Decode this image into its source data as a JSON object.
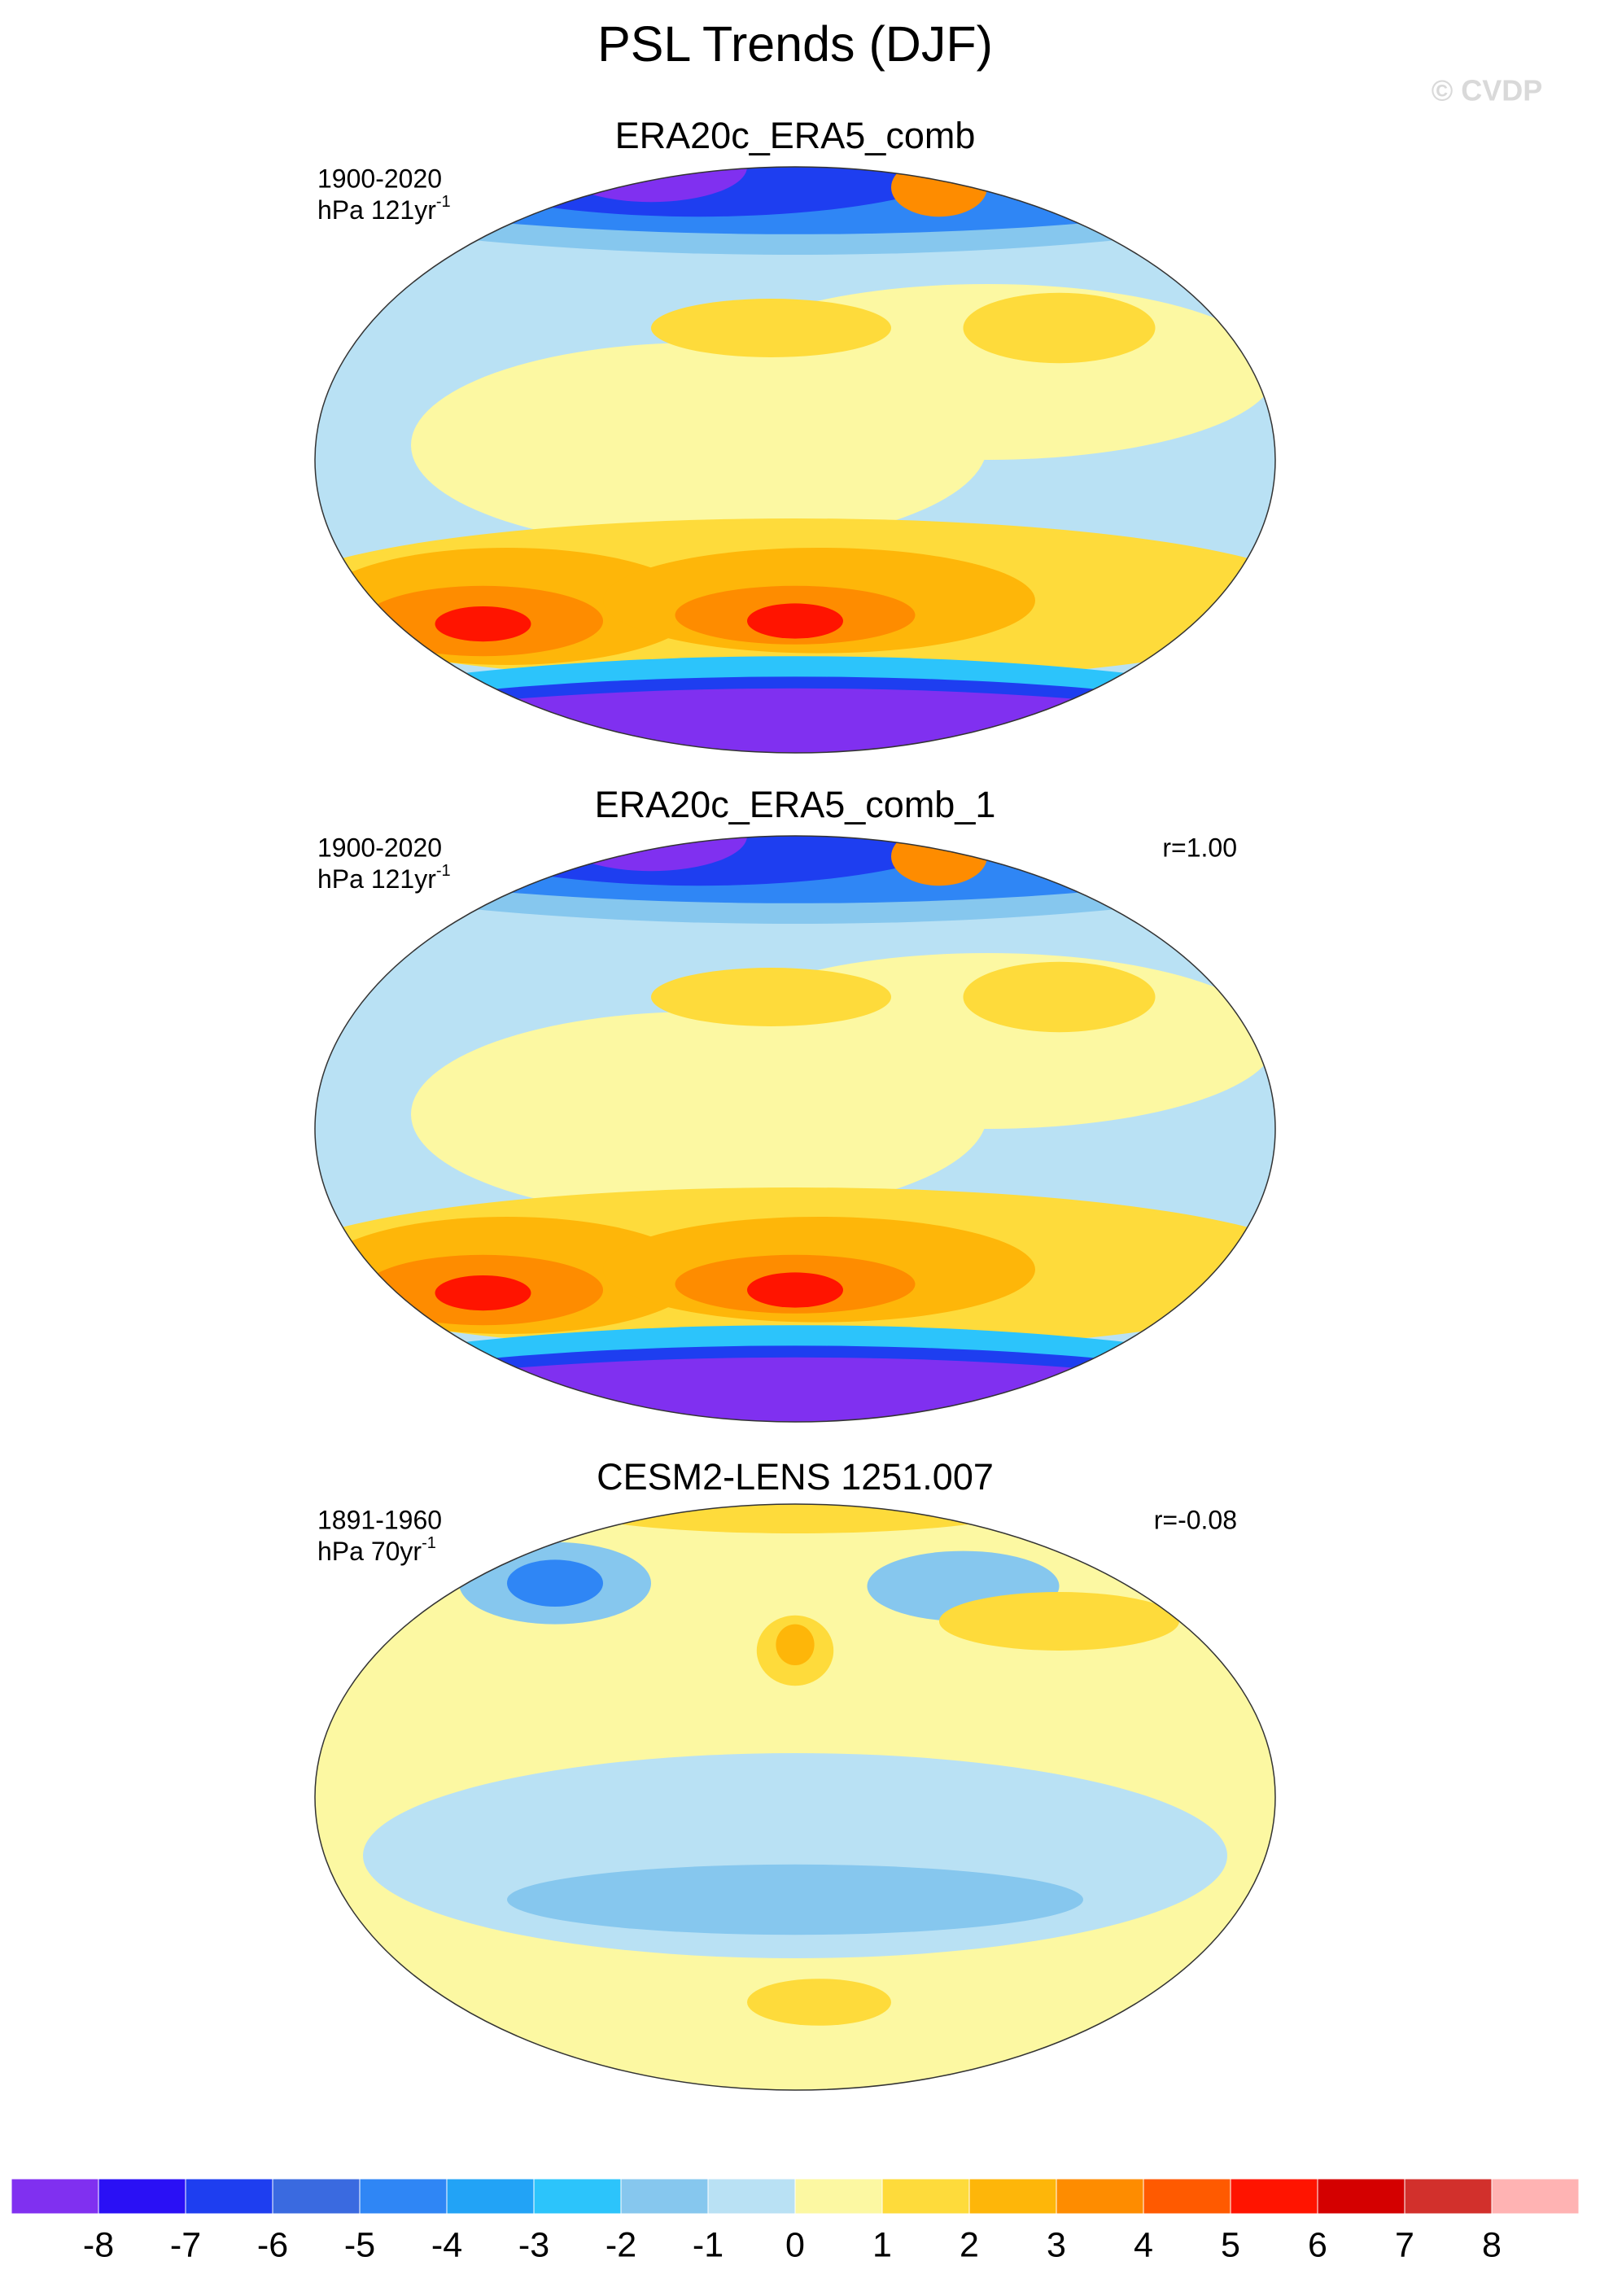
{
  "title": "PSL Trends (DJF)",
  "watermark": "© CVDP",
  "panels": [
    {
      "title": "ERA20c_ERA5_comb",
      "period": "1900-2020",
      "units": "hPa 121yr",
      "units_exponent": "-1"
    },
    {
      "title": "ERA20c_ERA5_comb_1",
      "period": "1900-2020",
      "units": "hPa 121yr",
      "units_exponent": "-1",
      "correlation": "r=1.00"
    },
    {
      "title": "CESM2-LENS 1251.007",
      "period": "1891-1960",
      "units": "hPa 70yr",
      "units_exponent": "-1",
      "correlation": "r=-0.08"
    }
  ],
  "colorbar": {
    "ticks": [
      -8,
      -7,
      -6,
      -5,
      -4,
      -3,
      -2,
      -1,
      0,
      1,
      2,
      3,
      4,
      5,
      6,
      7,
      8
    ],
    "colors": [
      "#8030f0",
      "#2a10f5",
      "#1e3ef0",
      "#3a6ae0",
      "#2f86f5",
      "#22a3f6",
      "#2cc4fb",
      "#86c7ee",
      "#b9e1f4",
      "#fcf8a2",
      "#fedb3b",
      "#feb609",
      "#fe8c00",
      "#ff5a00",
      "#ff1400",
      "#d40000",
      "#d2302c",
      "#ffb3b3"
    ]
  }
}
